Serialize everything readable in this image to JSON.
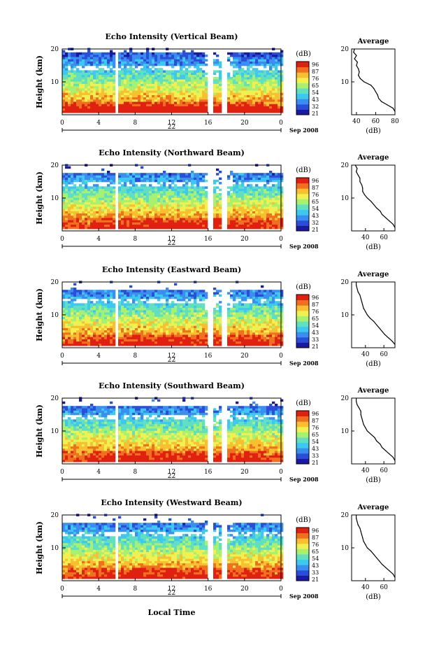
{
  "chart_data": {
    "type": "heatmap",
    "panels": [
      {
        "title": "Echo Intensity (Vertical Beam)",
        "date_label": "22"
      },
      {
        "title": "Echo Intensity (Northward Beam)",
        "date_label": "22"
      },
      {
        "title": "Echo Intensity (Eastward Beam)",
        "date_label": "22"
      },
      {
        "title": "Echo Intensity (Southward Beam)",
        "date_label": "22"
      },
      {
        "title": "Echo Intensity (Westward Beam)",
        "date_label": "22"
      }
    ],
    "ylabel": "Height (km)",
    "yticks": [
      "20",
      "10"
    ],
    "xticks": [
      "0",
      "4",
      "8",
      "12",
      "16",
      "20",
      "0"
    ],
    "month_label": "Sep 2008",
    "xlabel": "Local Time",
    "colorbar": {
      "unit": "(dB)",
      "ticks": [
        "96",
        "87",
        "76",
        "65",
        "54",
        "43",
        "32",
        "21"
      ],
      "tick_labels_by_panel": [
        [
          "96",
          "87",
          "76",
          "65",
          "54",
          "43",
          "32",
          "21"
        ],
        [
          "96",
          "87",
          "76",
          "65",
          "54",
          "43",
          "32",
          "21"
        ],
        [
          "96",
          "87",
          "76",
          "65",
          "54",
          "43",
          "33",
          "21"
        ],
        [
          "96",
          "87",
          "76",
          "65",
          "54",
          "43",
          "33",
          "21"
        ],
        [
          "96",
          "87",
          "76",
          "65",
          "54",
          "43",
          "33",
          "21"
        ]
      ],
      "colors": [
        "#1a1aa0",
        "#2b4ed8",
        "#3a8ef0",
        "#3cc8f0",
        "#60e0c0",
        "#a8f070",
        "#f0f050",
        "#f8c030",
        "#f07020",
        "#e02010"
      ]
    },
    "average_profiles": {
      "title": "Average",
      "xlabel": "(dB)",
      "yticks": [
        "20",
        "10"
      ],
      "xticks_by_panel": [
        [
          "40",
          "60",
          "80"
        ],
        [
          "40",
          "60"
        ],
        [
          "40",
          "60"
        ],
        [
          "40",
          "60"
        ],
        [
          "40",
          "60"
        ]
      ],
      "height_km": [
        1,
        2,
        3,
        4,
        5,
        6,
        7,
        8,
        9,
        10,
        11,
        12,
        13,
        14,
        15,
        16,
        17,
        18,
        19,
        20
      ],
      "panels": [
        {
          "xlim": [
            35,
            80
          ],
          "values": [
            80,
            78,
            72,
            66,
            63,
            62,
            60,
            58,
            55,
            48,
            44,
            42,
            43,
            42,
            40,
            41,
            38,
            40,
            37,
            38
          ]
        },
        {
          "xlim": [
            25,
            72
          ],
          "values": [
            72,
            70,
            66,
            62,
            58,
            56,
            52,
            49,
            46,
            42,
            39,
            37,
            37,
            36,
            34,
            34,
            32,
            30,
            31,
            29
          ]
        },
        {
          "xlim": [
            25,
            72
          ],
          "values": [
            72,
            69,
            65,
            61,
            58,
            55,
            52,
            49,
            45,
            42,
            40,
            38,
            37,
            36,
            35,
            34,
            32,
            31,
            30,
            30
          ]
        },
        {
          "xlim": [
            25,
            72
          ],
          "values": [
            72,
            70,
            66,
            62,
            58,
            56,
            52,
            50,
            46,
            42,
            40,
            38,
            37,
            36,
            35,
            35,
            33,
            31,
            30,
            30
          ]
        },
        {
          "xlim": [
            25,
            72
          ],
          "values": [
            72,
            70,
            66,
            62,
            58,
            55,
            52,
            49,
            46,
            42,
            40,
            38,
            37,
            36,
            35,
            34,
            32,
            31,
            30,
            30
          ]
        }
      ]
    },
    "xlim": [
      0,
      24
    ],
    "ylim": [
      0,
      20
    ]
  }
}
